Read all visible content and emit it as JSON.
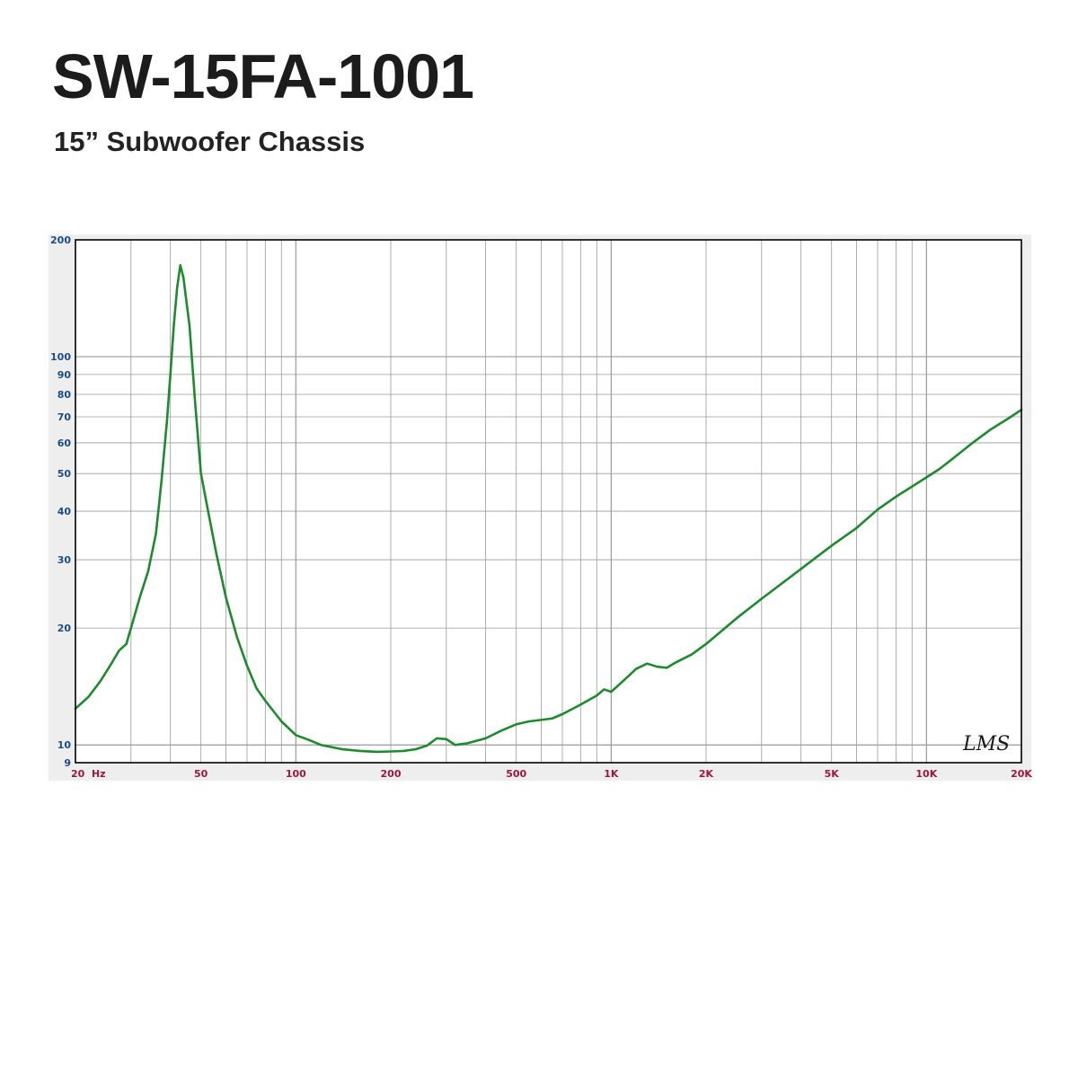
{
  "header": {
    "title": "SW-15FA-1001",
    "subtitle": "15” Subwoofer Chassis"
  },
  "signature": "LMS",
  "colors": {
    "curve": "#1e8a2e",
    "grid": "#9a9a9a",
    "frame": "#000000",
    "y_tick_text": "#1a4c8a",
    "x_tick_text": "#9a1840",
    "plot_background": "#ffffff",
    "outer_background": "#eeeeee"
  },
  "chart_data": {
    "type": "line",
    "title": "",
    "xlabel": "",
    "ylabel": "",
    "x_scale": "log",
    "y_scale": "log",
    "xlim": [
      20,
      20000
    ],
    "ylim": [
      9,
      200
    ],
    "grid": true,
    "legend": "none",
    "x_ticks": [
      {
        "value": 20,
        "label": "20  Hz"
      },
      {
        "value": 50,
        "label": "50"
      },
      {
        "value": 100,
        "label": "100"
      },
      {
        "value": 200,
        "label": "200"
      },
      {
        "value": 500,
        "label": "500"
      },
      {
        "value": 1000,
        "label": "1K"
      },
      {
        "value": 2000,
        "label": "2K"
      },
      {
        "value": 5000,
        "label": "5K"
      },
      {
        "value": 10000,
        "label": "10K"
      },
      {
        "value": 20000,
        "label": "20K"
      }
    ],
    "y_ticks": [
      {
        "value": 200,
        "label": "200"
      },
      {
        "value": 100,
        "label": "100"
      },
      {
        "value": 90,
        "label": "90"
      },
      {
        "value": 80,
        "label": "80"
      },
      {
        "value": 70,
        "label": "70"
      },
      {
        "value": 60,
        "label": "60"
      },
      {
        "value": 50,
        "label": "50"
      },
      {
        "value": 40,
        "label": "40"
      },
      {
        "value": 30,
        "label": "30"
      },
      {
        "value": 20,
        "label": "20"
      },
      {
        "value": 10,
        "label": "10"
      },
      {
        "value": 9,
        "label": "9"
      }
    ],
    "series": [
      {
        "x": [
          20,
          22,
          24,
          26,
          27.5,
          29,
          30,
          32,
          34,
          36,
          37.5,
          39,
          40,
          41,
          42,
          43,
          44,
          46,
          48,
          50,
          53,
          56,
          60,
          65,
          70,
          75,
          80,
          90,
          100,
          110,
          120,
          140,
          160,
          180,
          200,
          220,
          240,
          260,
          280,
          300,
          320,
          350,
          400,
          450,
          500,
          550,
          600,
          650,
          700,
          800,
          900,
          950,
          1000,
          1100,
          1200,
          1300,
          1400,
          1500,
          1600,
          1800,
          2000,
          2500,
          3000,
          4000,
          5000,
          6000,
          7000,
          8000,
          9000,
          10000,
          11000,
          12000,
          14000,
          16000,
          18000,
          20000
        ],
        "y": [
          12.4,
          13.3,
          14.6,
          16.2,
          17.5,
          18.2,
          20.0,
          24.0,
          28.0,
          35.0,
          48.0,
          68.0,
          90.0,
          120.0,
          150.0,
          172.0,
          160.0,
          120.0,
          75.0,
          50.0,
          39.0,
          31.0,
          24.0,
          19.0,
          16.0,
          14.0,
          13.0,
          11.5,
          10.6,
          10.3,
          10.0,
          9.75,
          9.65,
          9.6,
          9.62,
          9.65,
          9.75,
          9.95,
          10.4,
          10.35,
          10.0,
          10.1,
          10.4,
          10.9,
          11.3,
          11.5,
          11.6,
          11.7,
          12.0,
          12.7,
          13.4,
          13.9,
          13.7,
          14.7,
          15.7,
          16.2,
          15.9,
          15.8,
          16.3,
          17.1,
          18.2,
          21.2,
          23.8,
          28.4,
          32.6,
          36.2,
          40.4,
          43.6,
          46.3,
          48.9,
          51.4,
          54.3,
          60.0,
          65.0,
          69.0,
          73.0
        ]
      }
    ]
  }
}
